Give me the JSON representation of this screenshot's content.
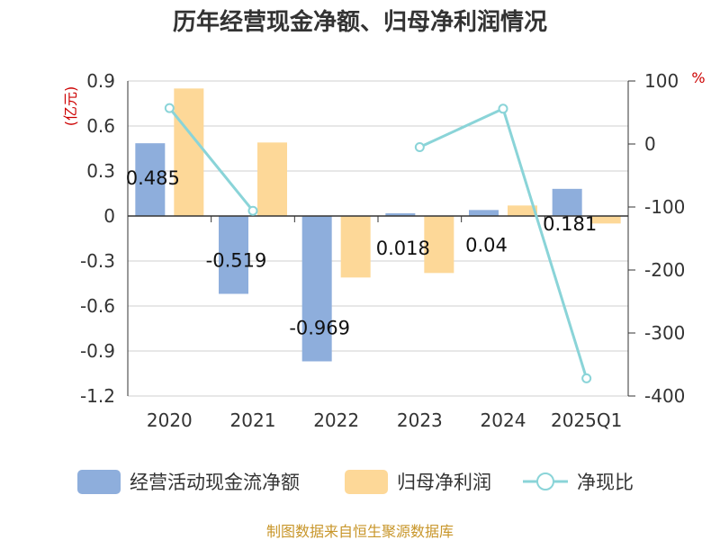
{
  "chart_data": {
    "type": "bar",
    "title": "历年经营现金净额、归母净利润情况",
    "categories": [
      "2020",
      "2021",
      "2022",
      "2023",
      "2024",
      "2025Q1"
    ],
    "left_axis": {
      "unit": "(亿元)",
      "ylim": [
        -1.2,
        0.9
      ],
      "ticks": [
        0.9,
        0.6,
        0.3,
        0,
        -0.3,
        -0.6,
        -0.9,
        -1.2
      ],
      "tick_labels": [
        "0.9",
        "0.6",
        "0.3",
        "0",
        "-0.3",
        "-0.6",
        "-0.9",
        "-1.2"
      ]
    },
    "right_axis": {
      "unit": "%",
      "ylim": [
        -400,
        100
      ],
      "ticks": [
        100,
        0,
        -100,
        -200,
        -300,
        -400
      ],
      "tick_labels": [
        "100",
        "0",
        "-100",
        "-200",
        "-300",
        "-400"
      ]
    },
    "series": [
      {
        "name": "经营活动现金流净额",
        "type": "bar",
        "axis": "left",
        "color": "#8eaedc",
        "values": [
          0.485,
          -0.519,
          -0.969,
          0.018,
          0.04,
          0.181
        ],
        "labels": [
          "0.485",
          "-0.519",
          "-0.969",
          "0.018",
          "0.04",
          "0.181"
        ]
      },
      {
        "name": "归母净利润",
        "type": "bar",
        "axis": "left",
        "color": "#fdd898",
        "values": [
          0.85,
          0.49,
          -0.41,
          -0.38,
          0.07,
          -0.05
        ]
      },
      {
        "name": "净现比",
        "type": "line",
        "axis": "right",
        "color": "#8ad4d8",
        "values": [
          57,
          -106,
          null,
          -5,
          56,
          -372
        ]
      }
    ],
    "grid": true,
    "legend_position": "bottom"
  },
  "source_text": "制图数据来自恒生聚源数据库"
}
